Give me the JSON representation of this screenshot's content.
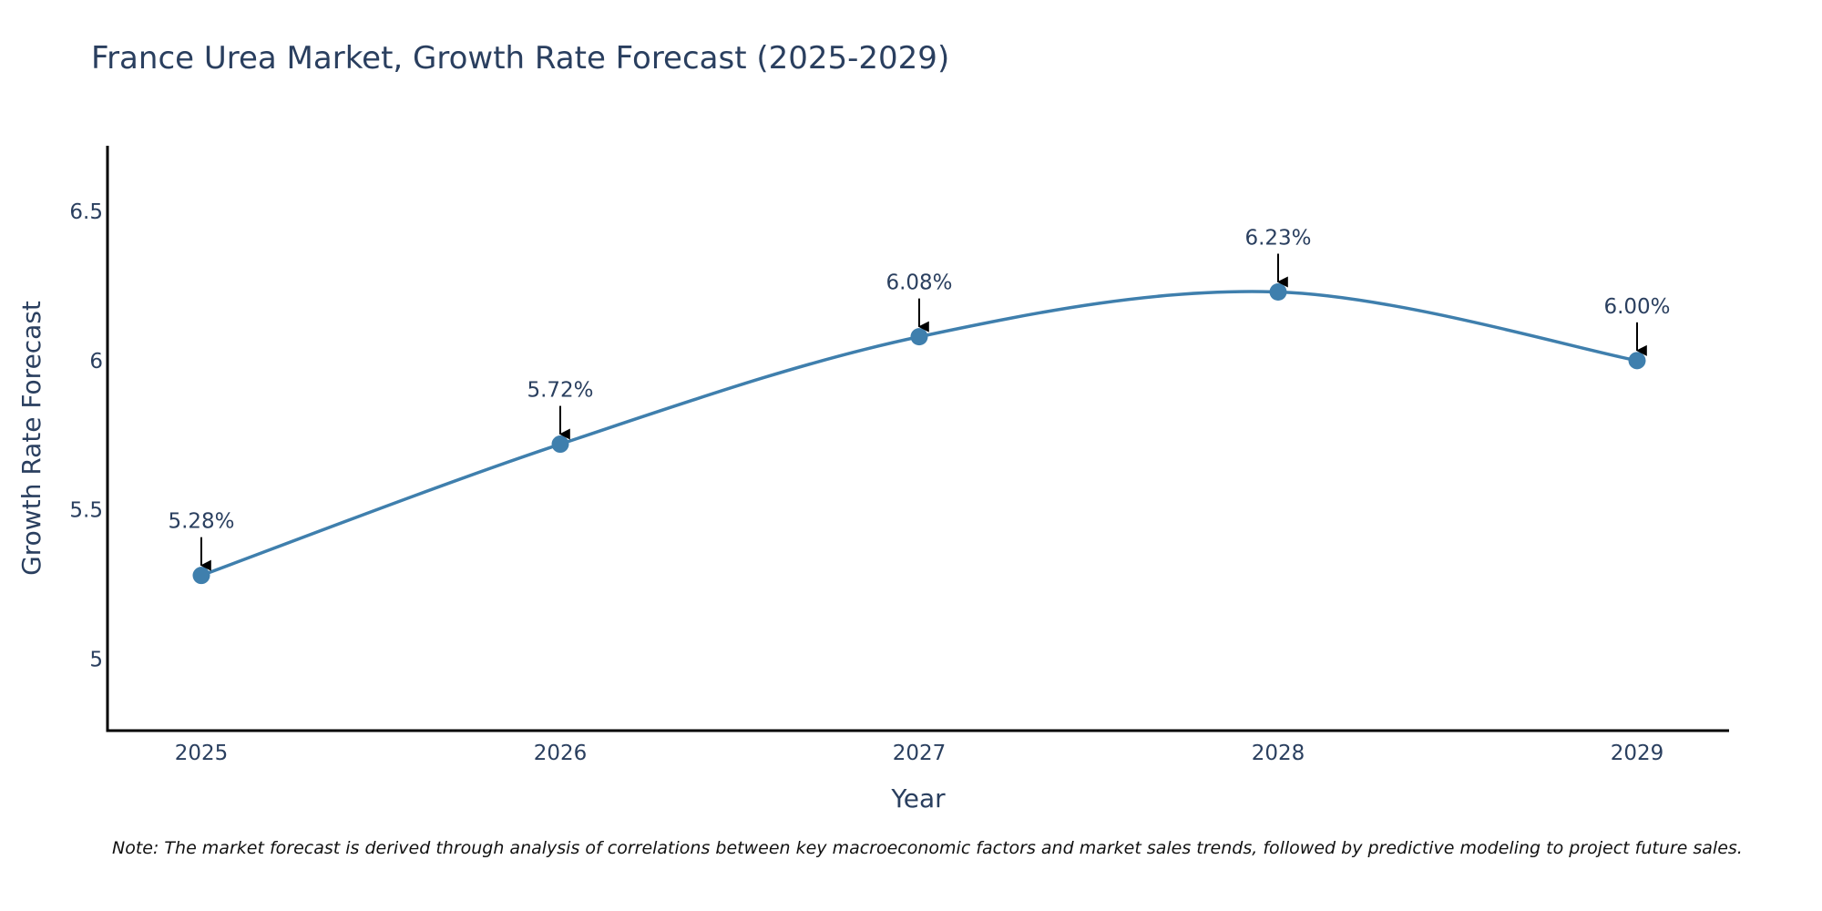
{
  "chart_data": {
    "type": "line",
    "title": "France Urea Market, Growth Rate Forecast (2025-2029)",
    "xlabel": "Year",
    "ylabel": "Growth Rate Forecast",
    "x": [
      2025,
      2026,
      2027,
      2028,
      2029
    ],
    "x_tick_labels": [
      "2025",
      "2026",
      "2027",
      "2028",
      "2029"
    ],
    "y_ticks": [
      5,
      5.5,
      6,
      6.5
    ],
    "y_tick_labels": [
      "5",
      "5.5",
      "6",
      "6.5"
    ],
    "ylim": [
      4.76,
      6.72
    ],
    "series": [
      {
        "name": "Growth Rate Forecast",
        "values": [
          5.28,
          5.72,
          6.08,
          6.23,
          6.0
        ],
        "labels": [
          "5.28%",
          "5.72%",
          "6.08%",
          "6.23%",
          "6.00%"
        ],
        "color": "#3f7fad",
        "smoothing": "spline",
        "markers": true
      }
    ],
    "annotation_arrow_color": "#000000",
    "grid": false
  },
  "note": "Note: The market forecast is derived through analysis of correlations between key macroeconomic factors and market sales trends, followed by predictive modeling to project future sales."
}
